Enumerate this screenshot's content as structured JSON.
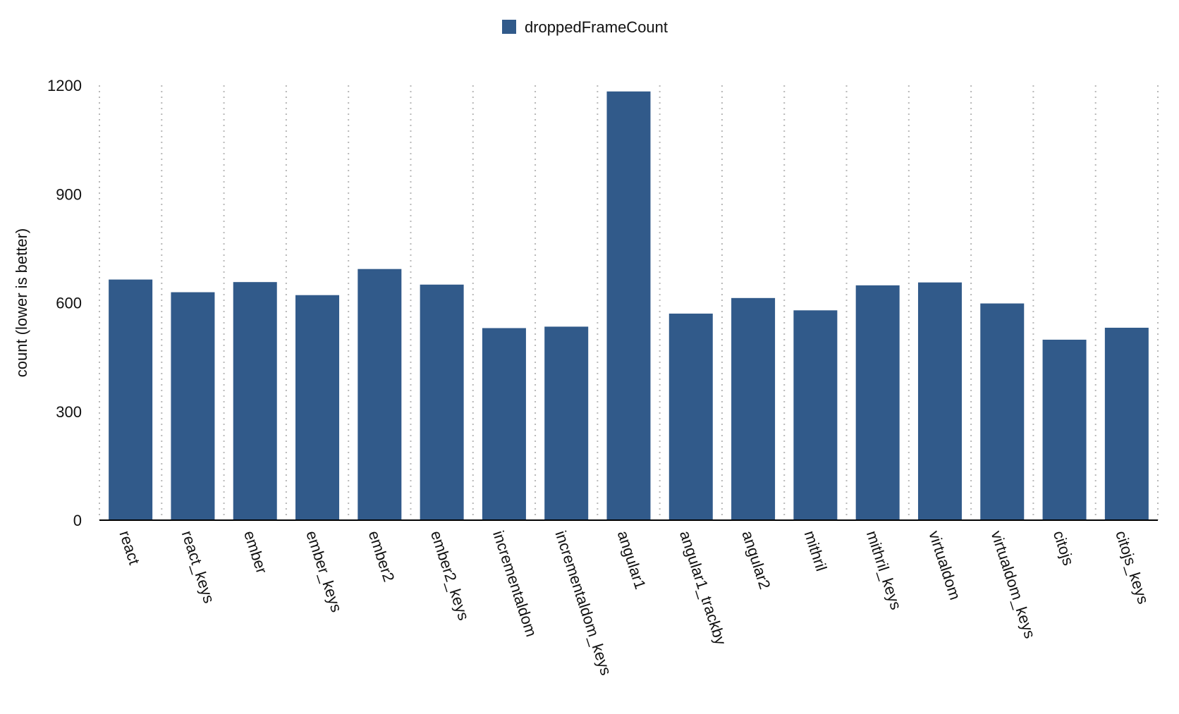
{
  "chart_data": {
    "type": "bar",
    "ylabel": "count (lower is better)",
    "xlabel": "",
    "ylim": [
      0,
      1200
    ],
    "yticks": [
      0,
      300,
      600,
      900,
      1200
    ],
    "grid": "vertical dotted",
    "legend_position": "top-center",
    "categories": [
      "react",
      "react_keys",
      "ember",
      "ember_keys",
      "ember2",
      "ember2_keys",
      "incrementaldom",
      "incrementaldom_keys",
      "angular1",
      "angular1_trackby",
      "angular2",
      "mithril",
      "mithril_keys",
      "virtualdom",
      "virtualdom_keys",
      "citojs",
      "citojs_keys"
    ],
    "series": [
      {
        "name": "droppedFrameCount",
        "color": "#315a8a",
        "values": [
          664,
          629,
          657,
          621,
          693,
          650,
          530,
          534,
          1183,
          570,
          613,
          579,
          648,
          656,
          598,
          498,
          531
        ]
      }
    ]
  }
}
